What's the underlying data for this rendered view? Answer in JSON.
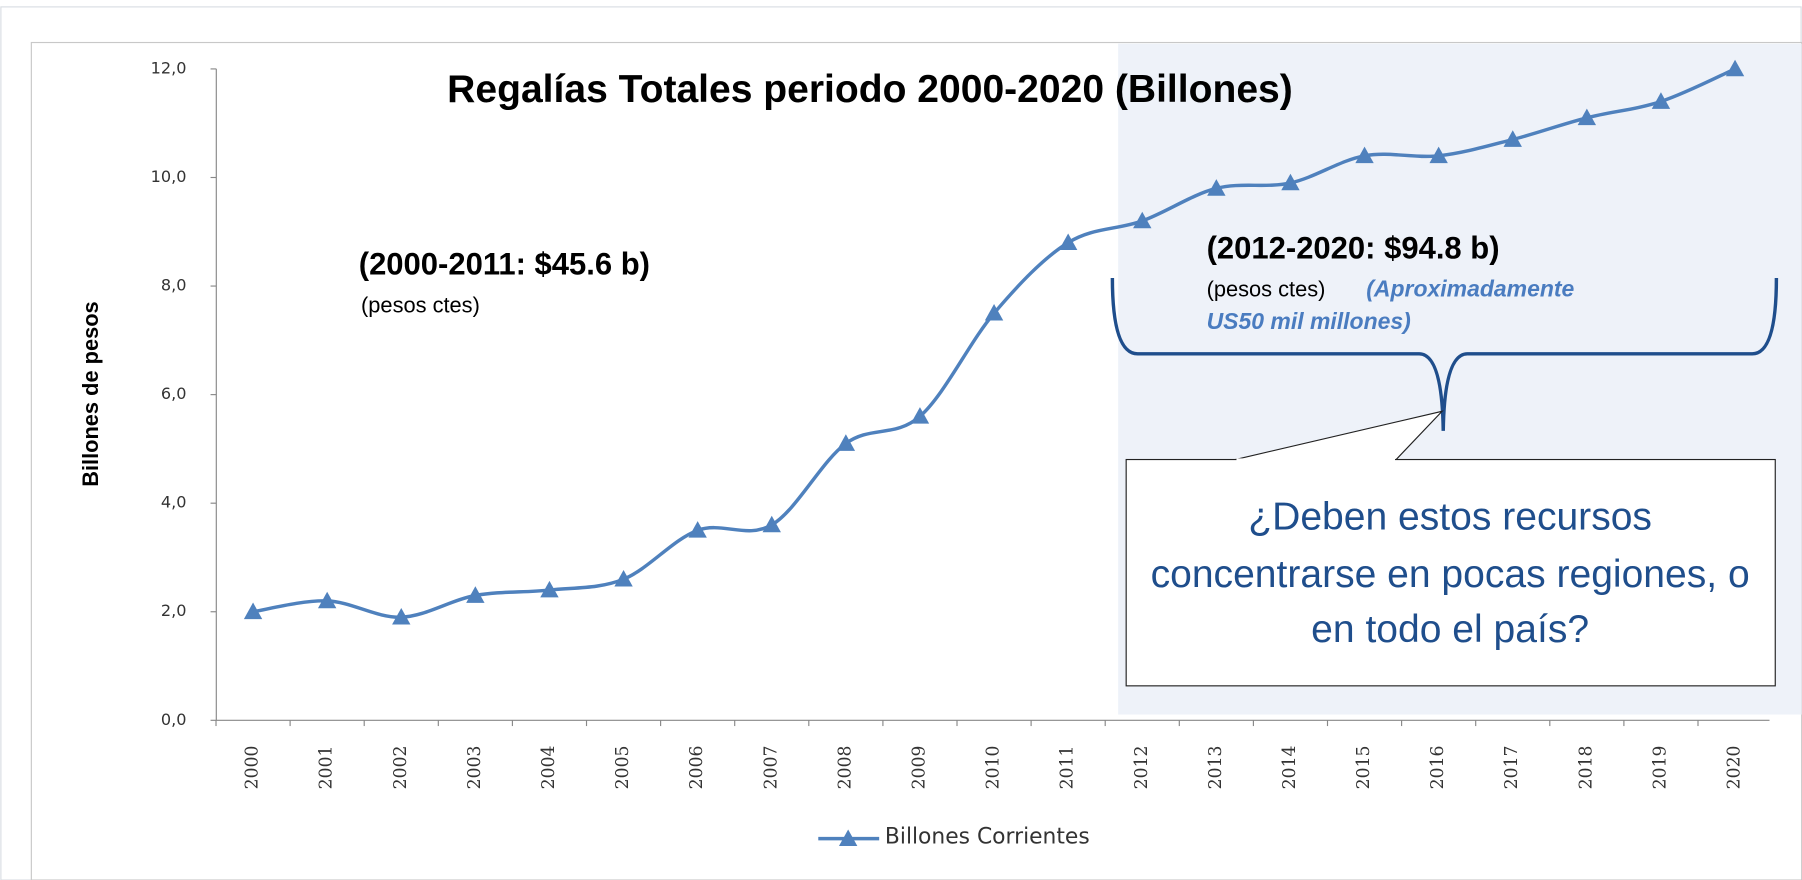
{
  "chart_data": {
    "type": "line",
    "title": "Regalías Totales periodo 2000-2020 (Billones)",
    "y_label": "Billones de pesos",
    "categories": [
      "2000",
      "2001",
      "2002",
      "2003",
      "2004",
      "2005",
      "2006",
      "2007",
      "2008",
      "2009",
      "2010",
      "2011",
      "2012",
      "2013",
      "2014",
      "2015",
      "2016",
      "2017",
      "2018",
      "2019",
      "2020"
    ],
    "series": [
      {
        "name": "Billones Corrientes",
        "color": "#4f81bd",
        "values": [
          2.0,
          2.2,
          1.9,
          2.3,
          2.4,
          2.6,
          3.5,
          3.6,
          5.1,
          5.6,
          7.5,
          8.8,
          9.2,
          9.8,
          9.9,
          10.4,
          10.4,
          10.7,
          11.1,
          11.4,
          12.0
        ]
      }
    ],
    "ylim": [
      0,
      12
    ],
    "yticks": [
      {
        "value": 0,
        "label": "0,0"
      },
      {
        "value": 2,
        "label": "2,0"
      },
      {
        "value": 4,
        "label": "4,0"
      },
      {
        "value": 6,
        "label": "6,0"
      },
      {
        "value": 8,
        "label": "8,0"
      },
      {
        "value": 10,
        "label": "10,0"
      },
      {
        "value": 12,
        "label": "12,0"
      }
    ],
    "annotations": {
      "left_title": "(2000-2011: $45.6 b)",
      "left_sub": "(pesos ctes)",
      "right_title": "(2012-2020: $94.8 b)",
      "right_sub": "(pesos ctes)",
      "right_note": [
        "(Aproximadamente",
        "US50 mil millones)"
      ],
      "callout": [
        "¿Deben estos recursos",
        "concentrarse en pocas regiones, o",
        "en todo el país?"
      ]
    }
  }
}
